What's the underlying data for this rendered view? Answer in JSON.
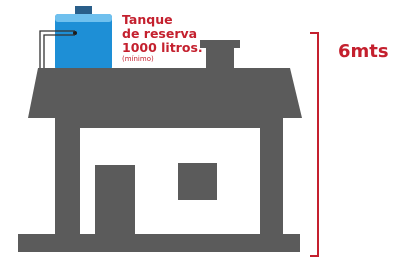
{
  "tank_label": {
    "lines": [
      "Tanque",
      "de reserva",
      "1000 litros."
    ],
    "note": "(mínimo)"
  },
  "height_label": "6mts"
}
